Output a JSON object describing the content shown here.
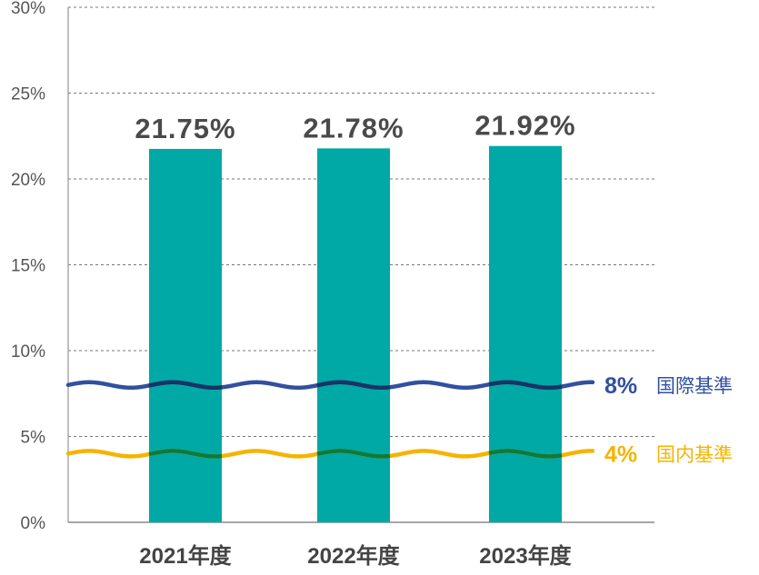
{
  "chart_data": {
    "type": "bar",
    "categories": [
      "2021年度",
      "2022年度",
      "2023年度"
    ],
    "values": [
      21.75,
      21.78,
      21.92
    ],
    "value_labels": [
      "21.75%",
      "21.78%",
      "21.92%"
    ],
    "ylim": [
      0,
      30
    ],
    "yticks": [
      0,
      5,
      10,
      15,
      20,
      25,
      30
    ],
    "ytick_labels": [
      "0%",
      "5%",
      "10%",
      "15%",
      "20%",
      "25%",
      "30%"
    ],
    "grid": true,
    "bar_color": "#00a9a5",
    "reference_lines": [
      {
        "value": 8,
        "value_label": "8%",
        "name": "国際基準",
        "color": "#3050a0",
        "overlap_color": "#1a3365"
      },
      {
        "value": 4,
        "value_label": "4%",
        "name": "国内基準",
        "color": "#f5b400",
        "overlap_color": "#0e7a3a"
      }
    ]
  }
}
